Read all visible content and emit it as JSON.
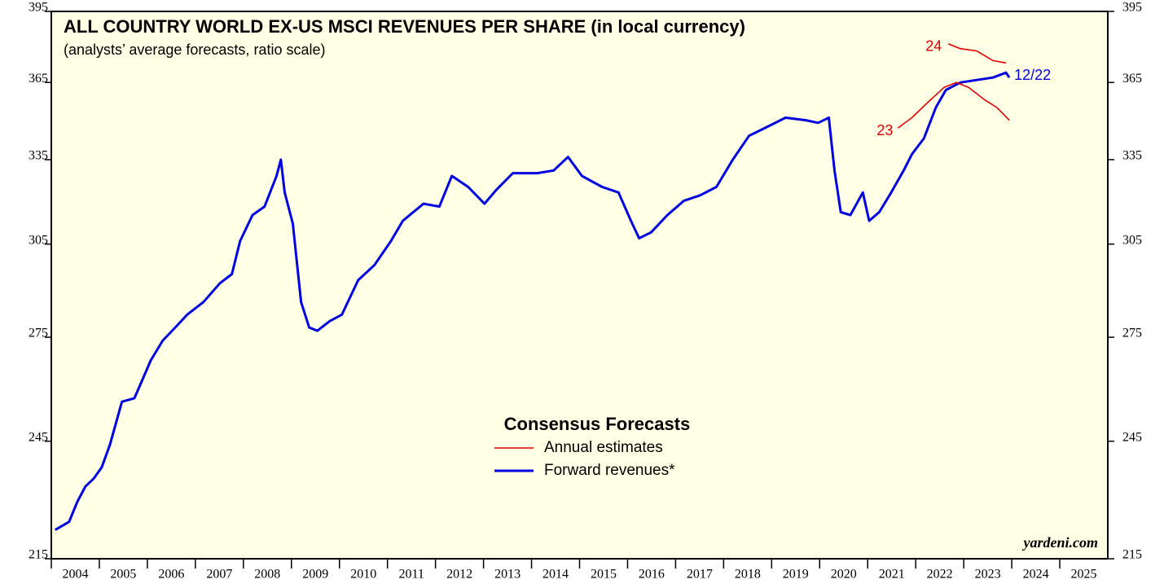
{
  "chart_data": {
    "type": "line",
    "title": "ALL COUNTRY WORLD EX-US MSCI REVENUES PER SHARE (in local currency)",
    "subtitle": "(analysts’ average forecasts, ratio scale)",
    "log_scale": true,
    "ylim": [
      215,
      395
    ],
    "yticks": [
      215,
      245,
      275,
      305,
      335,
      365,
      395
    ],
    "xlim": [
      2004,
      2026
    ],
    "categories": [
      "2004",
      "2005",
      "2006",
      "2007",
      "2008",
      "2009",
      "2010",
      "2011",
      "2012",
      "2013",
      "2014",
      "2015",
      "2016",
      "2017",
      "2018",
      "2019",
      "2020",
      "2021",
      "2022",
      "2023",
      "2024",
      "2025"
    ],
    "legend_title": "Consensus Forecasts",
    "legend": [
      {
        "name": "Annual estimates",
        "color": "#e00000"
      },
      {
        "name": "Forward revenues*",
        "color": "#0000e0"
      }
    ],
    "series": [
      {
        "color": "#0000e0",
        "x": [
          2004.08,
          2004.37,
          2004.54,
          2004.71,
          2004.88,
          2005.05,
          2005.22,
          2005.47,
          2005.73,
          2005.98,
          2006.07,
          2006.32,
          2006.58,
          2006.83,
          2007.17,
          2007.51,
          2007.76,
          2007.93,
          2008.19,
          2008.44,
          2008.69,
          2008.78,
          2008.86,
          2009.03,
          2009.2,
          2009.37,
          2009.54,
          2009.8,
          2010.05,
          2010.39,
          2010.73,
          2011.07,
          2011.32,
          2011.75,
          2012.08,
          2012.34,
          2012.68,
          2013.02,
          2013.27,
          2013.61,
          2014.12,
          2014.46,
          2014.76,
          2015.05,
          2015.47,
          2015.81,
          2016.07,
          2016.24,
          2016.49,
          2016.83,
          2017.17,
          2017.51,
          2017.85,
          2018.19,
          2018.53,
          2018.86,
          2019.29,
          2019.71,
          2019.97,
          2020.19,
          2020.31,
          2020.44,
          2020.64,
          2020.9,
          2021.03,
          2021.24,
          2021.49,
          2021.75,
          2021.92,
          2022.17,
          2022.42,
          2022.63,
          2022.93,
          2023.27,
          2023.61,
          2023.88,
          2023.95
        ],
        "values": [
          222,
          224,
          229,
          233,
          235,
          238,
          244,
          256,
          257,
          265,
          268,
          274,
          278,
          282,
          286,
          292,
          295,
          306,
          315,
          318,
          329,
          335,
          323,
          312,
          286,
          278,
          277,
          280,
          282,
          293,
          298,
          306,
          313,
          319,
          318,
          329,
          325,
          319,
          324,
          330,
          330,
          331,
          336,
          329,
          325,
          323,
          313,
          307,
          309,
          315,
          320,
          322,
          325,
          335,
          344,
          347,
          351,
          350,
          349,
          351,
          331,
          316,
          315,
          323,
          313,
          316,
          323,
          331,
          337,
          343,
          355,
          362,
          365,
          366,
          367,
          369,
          367
        ]
      },
      {
        "color": "#e00000",
        "x": [
          2021.63,
          2021.92,
          2022.25,
          2022.59,
          2022.85,
          2023.1,
          2023.44,
          2023.69,
          2023.95
        ],
        "values": [
          347,
          351,
          357,
          363,
          365,
          363,
          358,
          355,
          350
        ]
      },
      {
        "color": "#e00000",
        "x": [
          2022.68,
          2022.93,
          2023.27,
          2023.61,
          2023.88
        ],
        "values": [
          381,
          379,
          378,
          374,
          373
        ]
      }
    ],
    "annotations": [
      {
        "text": "23",
        "color": "#e00000"
      },
      {
        "text": "24",
        "color": "#e00000"
      },
      {
        "text": "12/22",
        "color": "#0000e0"
      },
      {
        "text": "yardeni.com",
        "color": "#000000"
      }
    ]
  }
}
